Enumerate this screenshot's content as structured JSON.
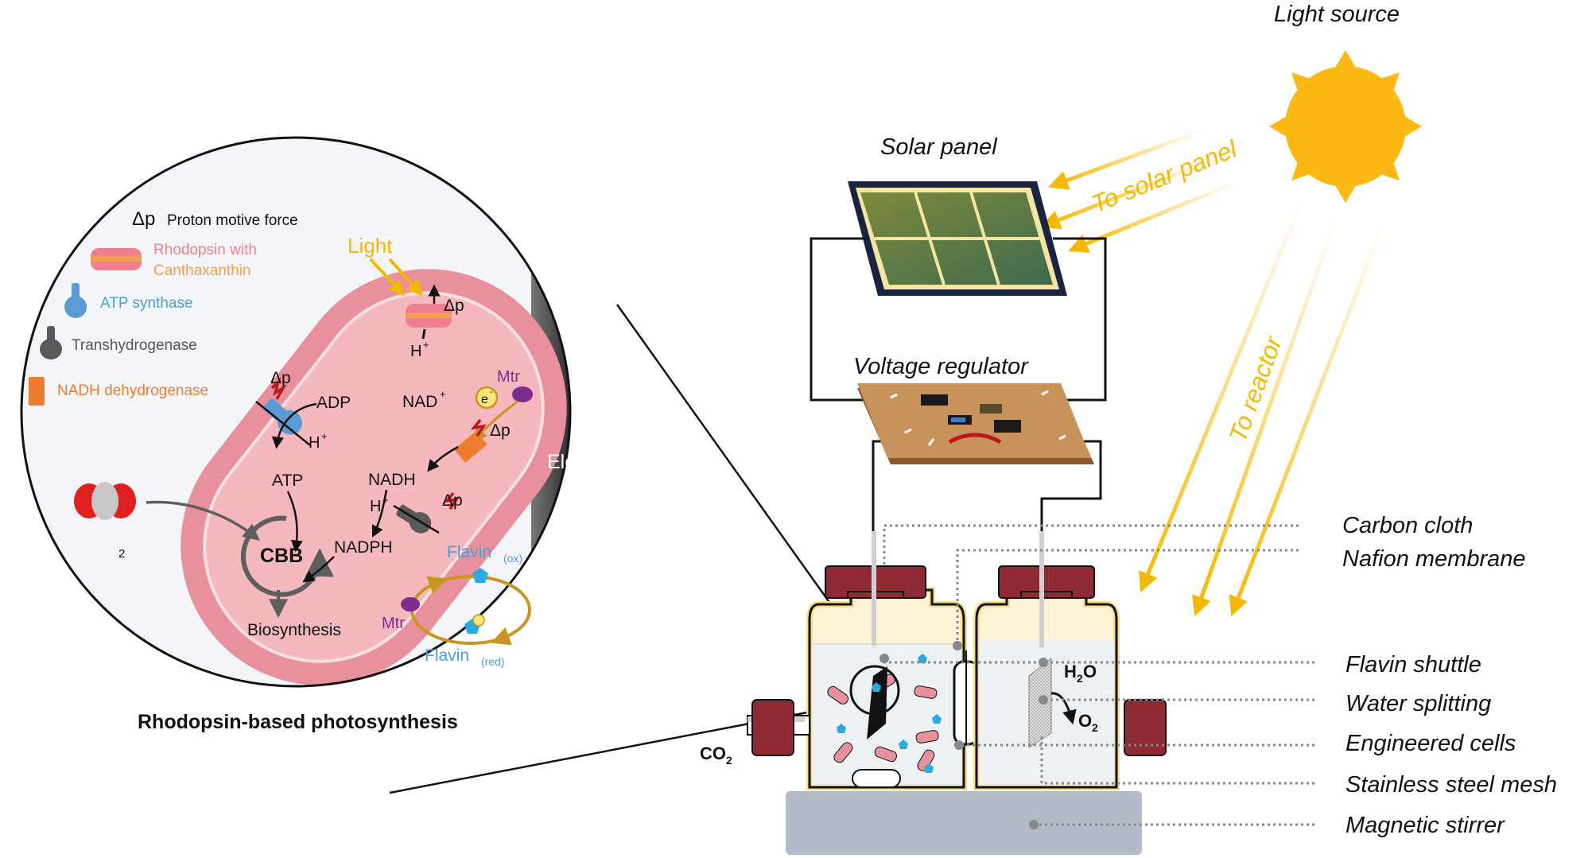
{
  "legend": {
    "dp_symbol": "Δp",
    "dp_text": "Proton motive force",
    "rhodopsin_line1": "Rhodopsin with",
    "rhodopsin_line2": "Canthaxanthin",
    "atp_synthase": "ATP synthase",
    "transhydrogenase": "Transhydrogenase",
    "nadh_dehydrogenase": "NADH dehydrogenase"
  },
  "cell": {
    "light": "Light",
    "dp": "Δp",
    "h_plus": "H",
    "plus": "+",
    "minus": "-",
    "adp": "ADP",
    "atp": "ATP",
    "nad_plus": "NAD",
    "nadh": "NADH",
    "nadph": "NADPH",
    "mtr": "Mtr",
    "e_minus": "e",
    "cbb": "CBB",
    "biosynthesis": "Biosynthesis",
    "co2": "CO",
    "sub2": "2",
    "flavin": "Flavin",
    "ox": "(ox)",
    "red": "(red)",
    "electrode": "Electrode",
    "caption": "Rhodopsin-based photosynthesis"
  },
  "system": {
    "light_source": "Light source",
    "solar_panel": "Solar panel",
    "to_solar_panel": "To solar panel",
    "to_reactor": "To reactor",
    "voltage_regulator": "Voltage regulator",
    "h2o_h": "H",
    "h2o_o": "O",
    "o2": "O",
    "sub2": "2",
    "co2": "CO"
  },
  "labels": [
    "Carbon cloth",
    "Nafion membrane",
    "Flavin shuttle",
    "Water splitting",
    "Engineered cells",
    "Stainless steel mesh",
    "Magnetic stirrer"
  ],
  "colors": {
    "sun": "#FDB913",
    "light_ray": "#F5B800",
    "cell_outer": "#E8909B",
    "cell_inner": "#F4B8BD",
    "circle_bg": "#F3F5F8",
    "cap": "#8E2A34",
    "stirrer": "#B4BBC8",
    "board": "#C8935A",
    "panel_cell": "#4D6B3A",
    "flavin": "#29ABE2",
    "mtr": "#7B2D8E",
    "atp_synthase": "#5B9BD5",
    "nadh_dehydrogenase": "#ED7D31",
    "transhydrogenase": "#595959",
    "label_blue": "#4A9FD6",
    "label_pink": "#F08090",
    "label_orange": "#F2A050"
  }
}
